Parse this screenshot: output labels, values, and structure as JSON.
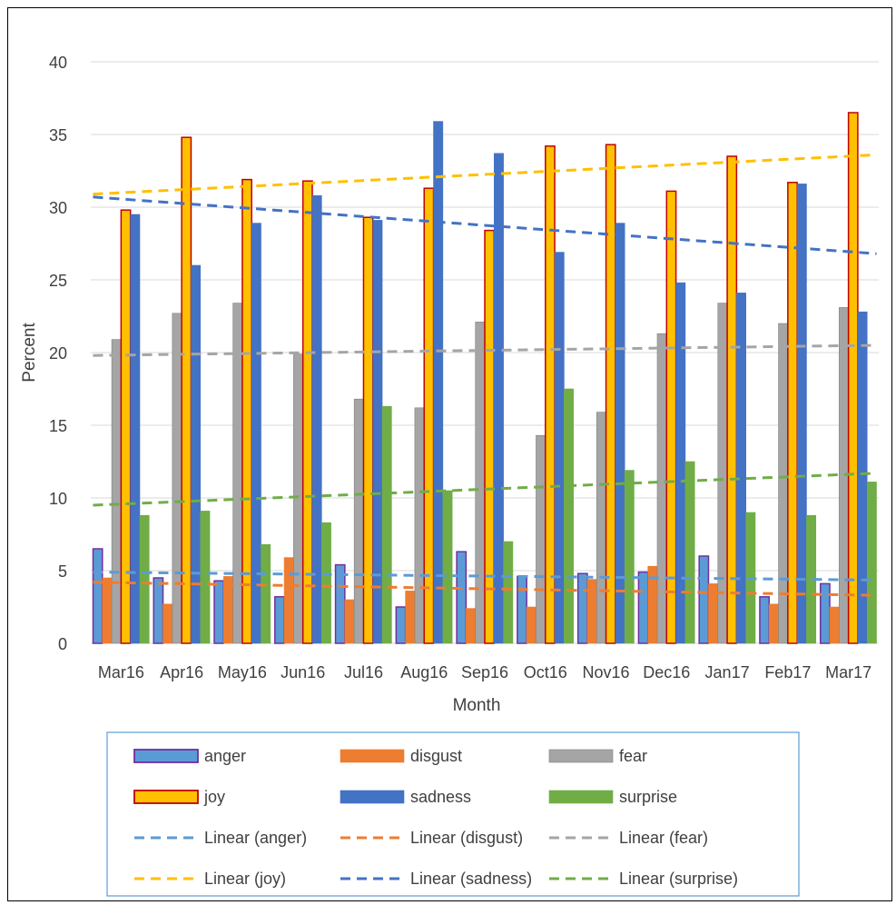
{
  "chart_data": {
    "type": "bar",
    "title": "",
    "xlabel": "Month",
    "ylabel": "Percent",
    "ylim": [
      0,
      40
    ],
    "yticks": [
      0,
      5,
      10,
      15,
      20,
      25,
      30,
      35,
      40
    ],
    "grid": true,
    "legend_position": "bottom",
    "categories": [
      "Mar16",
      "Apr16",
      "May16",
      "Jun16",
      "Jul16",
      "Aug16",
      "Sep16",
      "Oct16",
      "Nov16",
      "Dec16",
      "Jan17",
      "Feb17",
      "Mar17"
    ],
    "series": [
      {
        "name": "anger",
        "color": "#5B9BD5",
        "stroke": "#7030A0",
        "values": [
          6.5,
          4.5,
          4.3,
          3.2,
          5.4,
          2.5,
          6.3,
          4.6,
          4.8,
          4.9,
          6.0,
          3.2,
          4.1
        ]
      },
      {
        "name": "disgust",
        "color": "#ED7D31",
        "stroke": "#ED7D31",
        "values": [
          4.5,
          2.7,
          4.6,
          5.9,
          3.0,
          3.6,
          2.4,
          2.5,
          4.4,
          5.3,
          4.1,
          2.7,
          2.5
        ]
      },
      {
        "name": "fear",
        "color": "#A5A5A5",
        "stroke": "#808080",
        "values": [
          20.9,
          22.7,
          23.4,
          19.9,
          16.8,
          16.2,
          22.1,
          14.3,
          15.9,
          21.3,
          23.4,
          22.0,
          23.1
        ]
      },
      {
        "name": "joy",
        "color": "#FFC000",
        "stroke": "#C00000",
        "values": [
          29.8,
          34.8,
          31.9,
          31.8,
          29.3,
          31.3,
          28.4,
          34.2,
          34.3,
          31.1,
          33.5,
          31.7,
          36.5
        ]
      },
      {
        "name": "sadness",
        "color": "#4472C4",
        "stroke": "#4472C4",
        "values": [
          29.5,
          26.0,
          28.9,
          30.8,
          29.1,
          35.9,
          33.7,
          26.9,
          28.9,
          24.8,
          24.1,
          31.6,
          22.8
        ]
      },
      {
        "name": "surprise",
        "color": "#70AD47",
        "stroke": "#70AD47",
        "values": [
          8.8,
          9.1,
          6.8,
          8.3,
          16.3,
          10.5,
          7.0,
          17.5,
          11.9,
          12.5,
          9.0,
          8.8,
          11.1
        ]
      }
    ],
    "trendlines": [
      {
        "name": "Linear (anger)",
        "series": "anger",
        "color": "#5B9BD5",
        "start": 4.9,
        "end": 4.35
      },
      {
        "name": "Linear (disgust)",
        "series": "disgust",
        "color": "#ED7D31",
        "start": 4.2,
        "end": 3.3
      },
      {
        "name": "Linear (fear)",
        "series": "fear",
        "color": "#A5A5A5",
        "start": 19.8,
        "end": 20.5
      },
      {
        "name": "Linear (joy)",
        "series": "joy",
        "color": "#FFC000",
        "start": 30.9,
        "end": 33.6
      },
      {
        "name": "Linear (sadness)",
        "series": "sadness",
        "color": "#4472C4",
        "start": 30.7,
        "end": 26.8
      },
      {
        "name": "Linear (surprise)",
        "series": "surprise",
        "color": "#70AD47",
        "start": 9.5,
        "end": 11.7
      }
    ]
  }
}
